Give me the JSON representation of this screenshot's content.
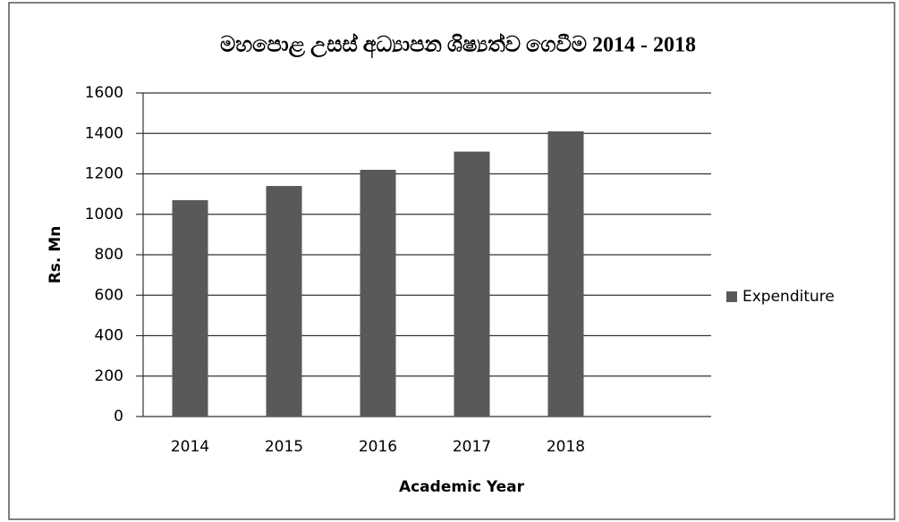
{
  "chart_data": {
    "type": "bar",
    "title": "මහපොළ උසස් අධ්‍යාපන ශිෂ්‍යත්ව ගෙවීම 2014 - 2018",
    "x_label": "Academic Year",
    "y_label": "Rs. Mn",
    "categories": [
      "2014",
      "2015",
      "2016",
      "2017",
      "2018"
    ],
    "series": [
      {
        "name": "Expenditure",
        "color": "#595959",
        "values": [
          1070,
          1140,
          1220,
          1310,
          1410
        ]
      }
    ],
    "ylim": [
      0,
      1600
    ],
    "yticks": [
      0,
      200,
      400,
      600,
      800,
      1000,
      1200,
      1400,
      1600
    ],
    "grid": true,
    "legend": "right"
  }
}
